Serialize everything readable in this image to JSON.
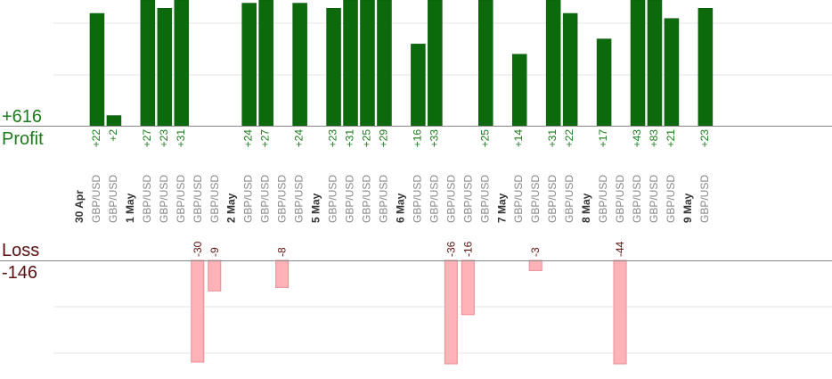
{
  "summary": {
    "profit_total": "+616",
    "profit_label": "Profit",
    "loss_label": "Loss",
    "loss_total": "-146"
  },
  "colors": {
    "profit_bar": "#0c6a0c",
    "profit_bar_edge": "#0a520a",
    "profit_text": "#1b7a1b",
    "loss_bar": "#ffb3b8",
    "loss_bar_edge": "#e88c93",
    "loss_text": "#5a1010",
    "axis": "#888888",
    "grid": "#e6e6e6",
    "pair_text": "#888888",
    "date_text": "#333333"
  },
  "chart_data": {
    "type": "bar",
    "note_scale": "profit panel clipped at top; values shown as printed labels",
    "columns": [
      {
        "kind": "date",
        "label": "30 Apr"
      },
      {
        "kind": "trade",
        "pair": "GBP/USD",
        "profit": "+22",
        "value": 22
      },
      {
        "kind": "trade",
        "pair": "GBP/USD",
        "profit": "+2",
        "value": 2
      },
      {
        "kind": "date",
        "label": "1 May"
      },
      {
        "kind": "trade",
        "pair": "GBP/USD",
        "profit": "+27",
        "value": 27
      },
      {
        "kind": "trade",
        "pair": "GBP/USD",
        "profit": "+23",
        "value": 23
      },
      {
        "kind": "trade",
        "pair": "GBP/USD",
        "profit": "+31",
        "value": 31
      },
      {
        "kind": "trade",
        "pair": "GBP/USD",
        "loss": "-30",
        "value": -30
      },
      {
        "kind": "trade",
        "pair": "GBP/USD",
        "loss": "-9",
        "value": -9
      },
      {
        "kind": "date",
        "label": "2 May"
      },
      {
        "kind": "trade",
        "pair": "GBP/USD",
        "profit": "+24",
        "value": 24
      },
      {
        "kind": "trade",
        "pair": "GBP/USD",
        "profit": "+27",
        "value": 27
      },
      {
        "kind": "trade",
        "pair": "GBP/USD",
        "loss": "-8",
        "value": -8
      },
      {
        "kind": "trade",
        "pair": "GBP/USD",
        "profit": "+24",
        "value": 24
      },
      {
        "kind": "date",
        "label": "5 May"
      },
      {
        "kind": "trade",
        "pair": "GBP/USD",
        "profit": "+23",
        "value": 23
      },
      {
        "kind": "trade",
        "pair": "GBP/USD",
        "profit": "+31",
        "value": 31
      },
      {
        "kind": "trade",
        "pair": "GBP/USD",
        "profit": "+25",
        "value": 25
      },
      {
        "kind": "trade",
        "pair": "GBP/USD",
        "profit": "+29",
        "value": 29
      },
      {
        "kind": "date",
        "label": "6 May"
      },
      {
        "kind": "trade",
        "pair": "GBP/USD",
        "profit": "+16",
        "value": 16
      },
      {
        "kind": "trade",
        "pair": "GBP/USD",
        "profit": "+33",
        "value": 33
      },
      {
        "kind": "trade",
        "pair": "GBP/USD",
        "loss": "-36",
        "value": -36
      },
      {
        "kind": "trade",
        "pair": "GBP/USD",
        "loss": "-16",
        "value": -16
      },
      {
        "kind": "trade",
        "pair": "GBP/USD",
        "profit": "+25",
        "value": 25
      },
      {
        "kind": "date",
        "label": "7 May"
      },
      {
        "kind": "trade",
        "pair": "GBP/USD",
        "profit": "+14",
        "value": 14
      },
      {
        "kind": "trade",
        "pair": "GBP/USD",
        "loss": "-3",
        "value": -3
      },
      {
        "kind": "trade",
        "pair": "GBP/USD",
        "profit": "+31",
        "value": 31
      },
      {
        "kind": "trade",
        "pair": "GBP/USD",
        "profit": "+22",
        "value": 22
      },
      {
        "kind": "date",
        "label": "8 May"
      },
      {
        "kind": "trade",
        "pair": "GBP/USD",
        "profit": "+17",
        "value": 17
      },
      {
        "kind": "trade",
        "pair": "GBP/USD",
        "loss": "-44",
        "value": -44
      },
      {
        "kind": "trade",
        "pair": "GBP/USD",
        "profit": "+43",
        "value": 43
      },
      {
        "kind": "trade",
        "pair": "GBP/USD",
        "profit": "+83",
        "value": 83
      },
      {
        "kind": "trade",
        "pair": "GBP/USD",
        "profit": "+21",
        "value": 21
      },
      {
        "kind": "date",
        "label": "9 May"
      },
      {
        "kind": "trade",
        "pair": "GBP/USD",
        "profit": "+23",
        "value": 23
      }
    ]
  }
}
